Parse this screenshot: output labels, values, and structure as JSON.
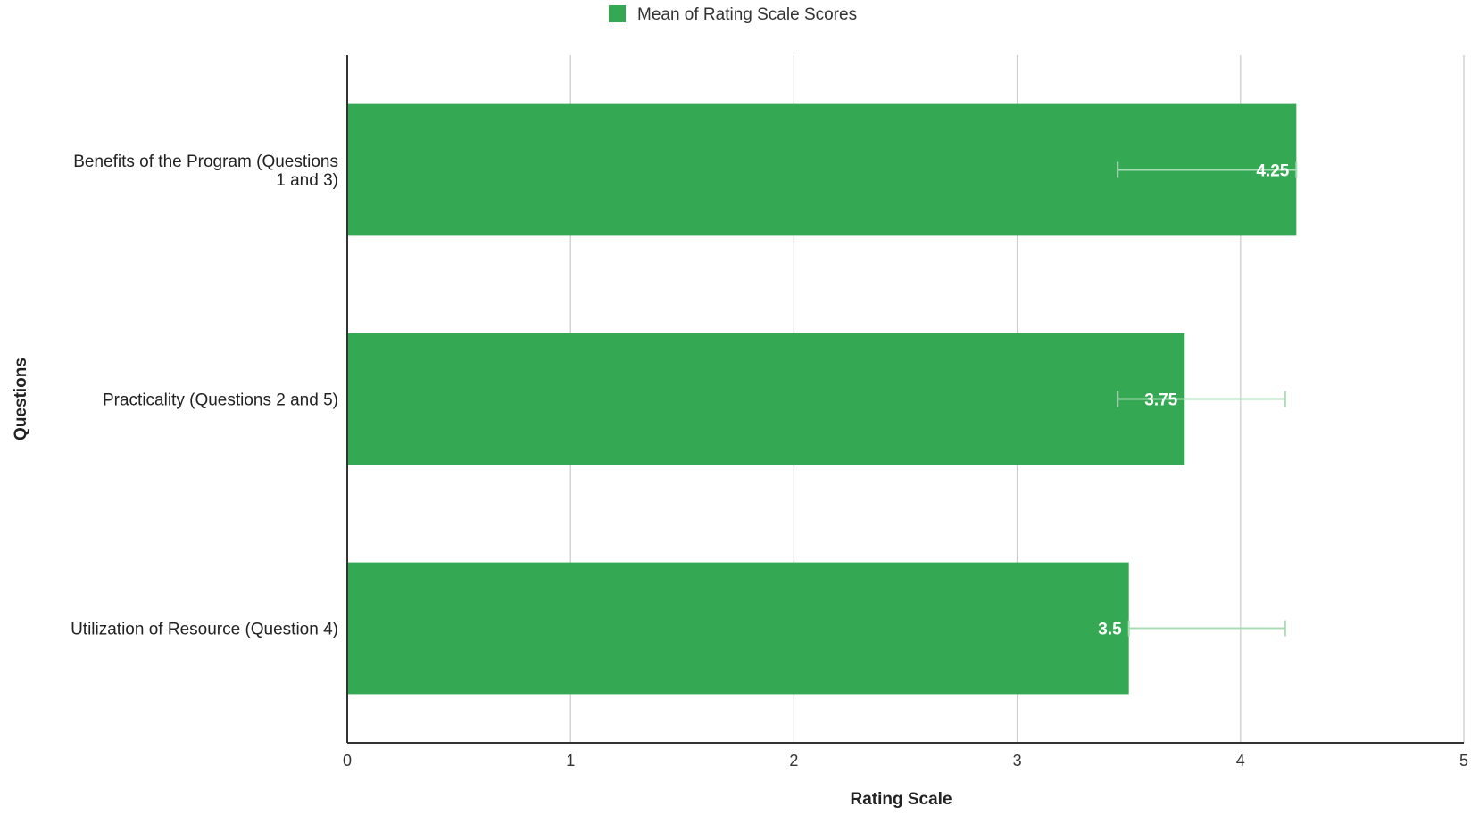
{
  "chart_data": {
    "type": "bar",
    "orientation": "horizontal",
    "categories": [
      [
        "Benefits of the Program (Questions",
        "1 and 3)"
      ],
      [
        "Practicality (Questions 2 and 5)"
      ],
      [
        "Utilization of Resource (Question 4)"
      ]
    ],
    "series": [
      {
        "name": "Mean of Rating Scale Scores",
        "color": "#34a853",
        "values": [
          4.25,
          3.75,
          3.5
        ],
        "data_labels": [
          "4.25",
          "3.75",
          "3.5"
        ],
        "error_bars": [
          {
            "low": 3.45,
            "high": 4.25
          },
          {
            "low": 3.45,
            "high": 4.2
          },
          {
            "low": 3.5,
            "high": 4.2
          }
        ]
      }
    ],
    "xlabel": "Rating Scale",
    "ylabel": "Questions",
    "xlim": [
      0,
      5
    ],
    "x_ticks": [
      "0",
      "1",
      "2",
      "3",
      "4",
      "5"
    ],
    "grid": true,
    "legend_position": "top",
    "error_bar_color": "#a8dcb5",
    "grid_color": "#cccccc",
    "axis_color": "#333333"
  }
}
